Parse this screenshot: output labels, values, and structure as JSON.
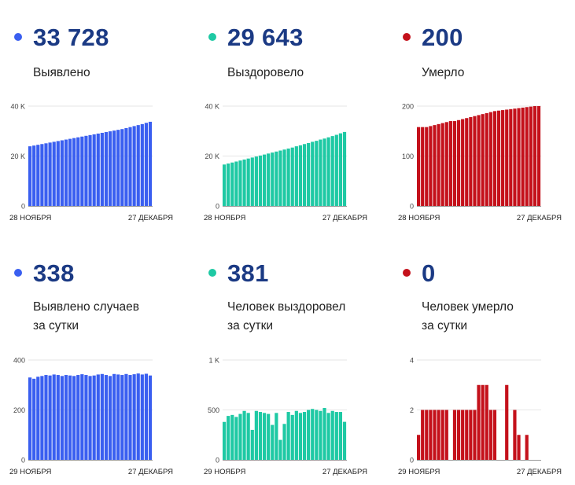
{
  "colors": {
    "blue": "#3a5ff0",
    "green": "#1ec9a4",
    "red": "#c4111b",
    "number": "#1b3a84"
  },
  "panels": [
    {
      "number": "33 728",
      "label": "Выявлено",
      "color": "#3a5ff0"
    },
    {
      "number": "29 643",
      "label": "Выздоровело",
      "color": "#1ec9a4"
    },
    {
      "number": "200",
      "label": "Умерло",
      "color": "#c4111b"
    },
    {
      "number": "338",
      "label": "Выявлено случаев\nза сутки",
      "color": "#3a5ff0"
    },
    {
      "number": "381",
      "label": "Человек выздоровел\nза сутки",
      "color": "#1ec9a4"
    },
    {
      "number": "0",
      "label": "Человек умерло\nза сутки",
      "color": "#c4111b"
    }
  ],
  "chart_data": [
    {
      "type": "bar",
      "color": "#3a5ff0",
      "x_start_label": "28 НОЯБРЯ",
      "x_end_label": "27 ДЕКАБРЯ",
      "yticks": [
        {
          "value": 0,
          "label": "0"
        },
        {
          "value": 20000,
          "label": "20 K"
        },
        {
          "value": 40000,
          "label": "40 K"
        }
      ],
      "ylim": [
        0,
        40000
      ],
      "values": [
        23900,
        24200,
        24500,
        24800,
        25100,
        25400,
        25700,
        26000,
        26300,
        26600,
        26900,
        27200,
        27500,
        27800,
        28100,
        28400,
        28700,
        29000,
        29300,
        29600,
        29900,
        30200,
        30500,
        30800,
        31200,
        31600,
        32000,
        32400,
        32800,
        33300,
        33728
      ]
    },
    {
      "type": "bar",
      "color": "#1ec9a4",
      "x_start_label": "28 НОЯБРЯ",
      "x_end_label": "27 ДЕКАБРЯ",
      "yticks": [
        {
          "value": 0,
          "label": "0"
        },
        {
          "value": 20000,
          "label": "20 K"
        },
        {
          "value": 40000,
          "label": "40 K"
        }
      ],
      "ylim": [
        0,
        40000
      ],
      "values": [
        16600,
        17000,
        17400,
        17800,
        18200,
        18600,
        19000,
        19400,
        19800,
        20200,
        20600,
        21000,
        21400,
        21800,
        22200,
        22600,
        23000,
        23400,
        23900,
        24300,
        24800,
        25200,
        25700,
        26100,
        26600,
        27000,
        27500,
        28000,
        28500,
        29100,
        29643
      ]
    },
    {
      "type": "bar",
      "color": "#c4111b",
      "x_start_label": "28 НОЯБРЯ",
      "x_end_label": "27 ДЕКАБРЯ",
      "yticks": [
        {
          "value": 0,
          "label": "0"
        },
        {
          "value": 100,
          "label": "100"
        },
        {
          "value": 200,
          "label": "200"
        }
      ],
      "ylim": [
        0,
        200
      ],
      "values": [
        158,
        158,
        158,
        160,
        162,
        164,
        166,
        168,
        170,
        170,
        172,
        174,
        176,
        178,
        180,
        182,
        184,
        186,
        188,
        190,
        191,
        192,
        193,
        194,
        195,
        196,
        197,
        198,
        199,
        200,
        200
      ]
    },
    {
      "type": "bar",
      "color": "#3a5ff0",
      "x_start_label": "29 НОЯБРЯ",
      "x_end_label": "27 ДЕКАБРЯ",
      "yticks": [
        {
          "value": 0,
          "label": "0"
        },
        {
          "value": 200,
          "label": "200"
        },
        {
          "value": 400,
          "label": "400"
        }
      ],
      "ylim": [
        0,
        400
      ],
      "values": [
        330,
        325,
        333,
        336,
        340,
        338,
        342,
        340,
        336,
        340,
        338,
        336,
        340,
        343,
        340,
        336,
        338,
        342,
        344,
        340,
        336,
        344,
        342,
        340,
        344,
        340,
        343,
        346,
        342,
        345,
        338
      ]
    },
    {
      "type": "bar",
      "color": "#1ec9a4",
      "x_start_label": "29 НОЯБРЯ",
      "x_end_label": "27 ДЕКАБРЯ",
      "yticks": [
        {
          "value": 0,
          "label": "0"
        },
        {
          "value": 500,
          "label": "500"
        },
        {
          "value": 1000,
          "label": "1 K"
        }
      ],
      "ylim": [
        0,
        1000
      ],
      "values": [
        380,
        440,
        450,
        430,
        460,
        490,
        470,
        300,
        490,
        480,
        470,
        460,
        350,
        470,
        200,
        360,
        480,
        450,
        490,
        470,
        480,
        500,
        510,
        500,
        490,
        520,
        470,
        490,
        480,
        480,
        381
      ]
    },
    {
      "type": "bar",
      "color": "#c4111b",
      "x_start_label": "29 НОЯБРЯ",
      "x_end_label": "27 ДЕКАБРЯ",
      "yticks": [
        {
          "value": 0,
          "label": "0"
        },
        {
          "value": 2,
          "label": "2"
        },
        {
          "value": 4,
          "label": "4"
        }
      ],
      "ylim": [
        0,
        4
      ],
      "values": [
        1,
        2,
        2,
        2,
        2,
        2,
        2,
        2,
        0,
        2,
        2,
        2,
        2,
        2,
        2,
        3,
        3,
        3,
        2,
        2,
        0,
        0,
        3,
        0,
        2,
        1,
        0,
        1,
        0,
        0,
        0
      ]
    }
  ]
}
